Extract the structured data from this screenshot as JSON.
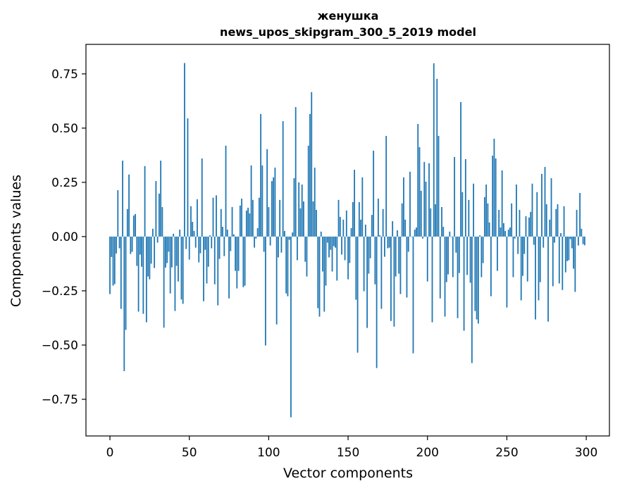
{
  "chart_data": {
    "type": "bar",
    "title": "женушка",
    "subtitle": "news_upos_skipgram_300_5_2019 model",
    "xlabel": "Vector components",
    "ylabel": "Components values",
    "xlim": [
      -15.1,
      314.6
    ],
    "ylim": [
      -0.919,
      0.886
    ],
    "xticks": [
      0,
      50,
      100,
      150,
      200,
      250,
      300
    ],
    "xtick_labels": [
      "0",
      "50",
      "100",
      "150",
      "200",
      "250",
      "300"
    ],
    "yticks": [
      -0.75,
      -0.5,
      -0.25,
      0,
      0.25,
      0.5,
      0.75
    ],
    "ytick_labels": [
      "−0.75",
      "−0.50",
      "−0.25",
      "0.00",
      "0.25",
      "0.50",
      "0.75"
    ],
    "grid": false,
    "color": "#1f77b4",
    "values": [
      -0.265,
      -0.094,
      -0.226,
      -0.219,
      -0.078,
      0.214,
      -0.054,
      -0.333,
      0.35,
      -0.62,
      -0.43,
      0.127,
      0.286,
      -0.08,
      -0.07,
      0.097,
      0.104,
      -0.135,
      -0.346,
      -0.083,
      -0.139,
      -0.356,
      0.325,
      -0.395,
      -0.184,
      -0.197,
      -0.125,
      0.036,
      -0.145,
      0.256,
      -0.028,
      0.198,
      0.35,
      0.136,
      -0.42,
      -0.143,
      -0.122,
      -0.07,
      -0.262,
      -0.142,
      0.013,
      -0.343,
      -0.135,
      -0.207,
      0.032,
      -0.29,
      -0.31,
      0.8,
      -0.057,
      0.545,
      -0.106,
      0.14,
      0.068,
      0.026,
      -0.051,
      0.172,
      -0.119,
      -0.077,
      0.36,
      -0.298,
      -0.061,
      -0.216,
      -0.139,
      0.006,
      -0.054,
      0.179,
      -0.22,
      0.19,
      -0.317,
      -0.103,
      0.127,
      0.045,
      -0.09,
      0.419,
      0.032,
      -0.285,
      -0.067,
      0.136,
      0.01,
      -0.158,
      -0.239,
      -0.158,
      0.143,
      0.175,
      -0.233,
      -0.226,
      0.12,
      0.133,
      0.107,
      0.328,
      0.169,
      -0.051,
      -0.009,
      0.039,
      0.179,
      0.565,
      0.328,
      -0.07,
      -0.502,
      0.403,
      0.136,
      -0.041,
      0.256,
      0.273,
      0.318,
      -0.405,
      -0.096,
      0.169,
      -0.074,
      0.532,
      0.026,
      -0.262,
      -0.275,
      -0.015,
      -0.833,
      0.019,
      0.269,
      0.597,
      -0.109,
      0.25,
      0.13,
      0.24,
      0.162,
      -0.116,
      -0.184,
      0.419,
      0.565,
      0.666,
      0.162,
      0.318,
      0.123,
      -0.33,
      -0.369,
      0.023,
      -0.161,
      -0.346,
      -0.226,
      -0.028,
      -0.096,
      -0.061,
      -0.161,
      -0.044,
      -0.051,
      -0.203,
      0.169,
      0.091,
      -0.083,
      0.078,
      -0.109,
      0.12,
      -0.197,
      -0.122,
      0.039,
      0.159,
      0.308,
      -0.291,
      -0.535,
      0.159,
      0.078,
      0.273,
      -0.252,
      0.055,
      -0.421,
      -0.171,
      -0.1,
      0.1,
      0.396,
      -0.22,
      -0.606,
      0.175,
      0.006,
      -0.333,
      0.127,
      -0.093,
      0.464,
      -0.054,
      -0.051,
      -0.389,
      0.071,
      -0.415,
      -0.184,
      0.029,
      -0.171,
      -0.265,
      0.153,
      0.273,
      0.078,
      -0.281,
      -0.07,
      0.299,
      -0.002,
      -0.538,
      0.032,
      0.042,
      0.519,
      0.412,
      0.211,
      -0.009,
      0.344,
      0.253,
      -0.207,
      0.338,
      0.13,
      -0.395,
      0.799,
      0.149,
      0.727,
      0.464,
      -0.285,
      0.136,
      0.045,
      -0.369,
      -0.21,
      -0.174,
      0.023,
      -0.002,
      -0.187,
      0.367,
      -0.074,
      -0.376,
      -0.168,
      0.62,
      0.205,
      -0.434,
      0.357,
      -0.177,
      0.169,
      -0.213,
      -0.583,
      0.244,
      -0.343,
      -0.382,
      -0.401,
      0.006,
      -0.187,
      -0.122,
      0.182,
      0.24,
      0.153,
      0.065,
      -0.275,
      0.373,
      0.451,
      0.36,
      -0.158,
      0.123,
      0.042,
      0.305,
      0.062,
      0.026,
      -0.327,
      0.032,
      0.042,
      0.153,
      -0.187,
      -0.009,
      0.24,
      -0.08,
      0.123,
      -0.294,
      -0.181,
      -0.08,
      0.094,
      -0.207,
      0.088,
      0.114,
      0.244,
      -0.038,
      -0.382,
      0.205,
      -0.294,
      -0.21,
      0.289,
      -0.051,
      0.321,
      0.149,
      -0.392,
      0.078,
      0.269,
      -0.229,
      -0.028,
      0.127,
      0.149,
      -0.216,
      0.016,
      -0.246,
      0.14,
      -0.165,
      -0.113,
      -0.109,
      -0.012,
      -0.054,
      -0.148,
      -0.255,
      0.123,
      -0.041,
      0.201,
      0.036,
      -0.035,
      -0.04
    ]
  }
}
